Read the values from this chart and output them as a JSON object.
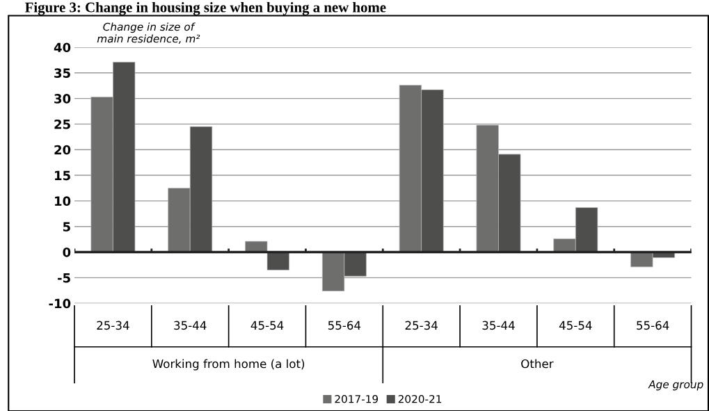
{
  "chart_data": {
    "type": "bar",
    "title": "Figure 3: Change in housing size when buying a new home",
    "ylabel": "Change in size of\nmain residence, m²",
    "xlabel": "Age group",
    "categories": [
      "25-34",
      "35-44",
      "45-54",
      "55-64",
      "25-34",
      "35-44",
      "45-54",
      "55-64"
    ],
    "annotations": [
      "Working from home (a lot)",
      "Other"
    ],
    "series": [
      {
        "name": "2017-19",
        "color": "#6e6f6c",
        "values": [
          30.3,
          12.5,
          2.1,
          -7.6,
          32.6,
          24.8,
          2.6,
          -2.9
        ]
      },
      {
        "name": "2020-21",
        "color": "#4e4e4c",
        "values": [
          37.1,
          24.5,
          -3.5,
          -4.7,
          31.7,
          19.1,
          8.7,
          -1.1
        ]
      }
    ],
    "ylim": [
      -10,
      40
    ],
    "yticks": [
      -10,
      -5,
      0,
      5,
      10,
      15,
      20,
      25,
      30,
      35,
      40
    ],
    "grid": "y",
    "legend": "bottom"
  }
}
